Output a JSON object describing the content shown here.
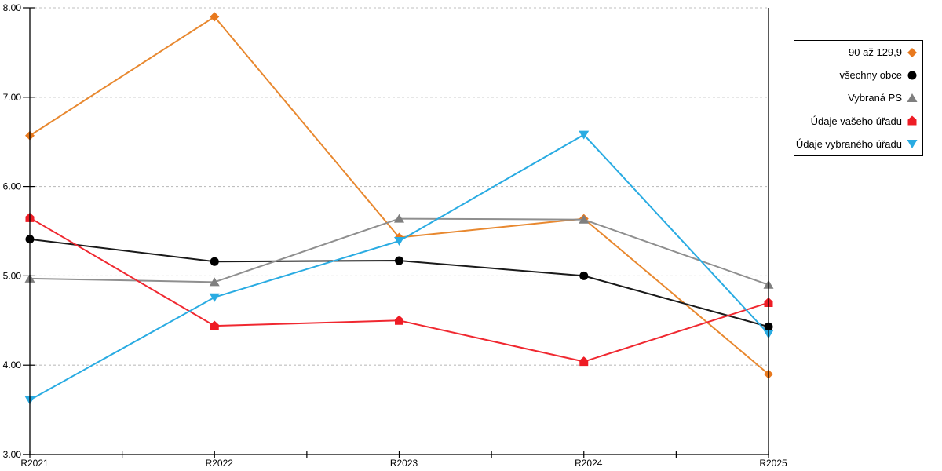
{
  "chart_data": {
    "type": "line",
    "title": "",
    "xlabel": "",
    "ylabel": "",
    "categories": [
      "R2021",
      "R2022",
      "R2023",
      "R2024",
      "R2025"
    ],
    "series": [
      {
        "name": "90 až 129,9",
        "marker": "diamond",
        "color": "#E8791E",
        "line_color": "#E8882F",
        "values": [
          6.57,
          7.9,
          5.43,
          5.64,
          3.9
        ]
      },
      {
        "name": "všechny obce",
        "marker": "circle",
        "color": "#000000",
        "line_color": "#1A1A1A",
        "values": [
          5.41,
          5.16,
          5.17,
          5.0,
          4.43
        ]
      },
      {
        "name": "Vybraná PS",
        "marker": "triangle-up",
        "color": "#7F7F7F",
        "line_color": "#8F8F8F",
        "values": [
          4.97,
          4.93,
          5.64,
          5.63,
          4.9
        ]
      },
      {
        "name": "Údaje vašeho úřadu",
        "marker": "pentagon",
        "color": "#EE1C25",
        "line_color": "#F02830",
        "values": [
          5.65,
          4.44,
          4.5,
          4.04,
          4.7
        ]
      },
      {
        "name": "Údaje vybraného úřadu",
        "marker": "triangle-down",
        "color": "#29ABE2",
        "line_color": "#29ABE2",
        "values": [
          3.61,
          4.76,
          5.39,
          6.58,
          4.35
        ]
      }
    ],
    "ylim": [
      3,
      8
    ],
    "ytick_labels": [
      "3.00",
      "4.00",
      "5.00",
      "6.00",
      "7.00",
      "8.00"
    ],
    "grid": "horizontal-dashed",
    "legend_position": "outside-right-boxed"
  },
  "style": {
    "grid_color": "#BFBFBF",
    "axis_color": "#000000",
    "background": "#FFFFFF",
    "legend_border": "#000000"
  }
}
